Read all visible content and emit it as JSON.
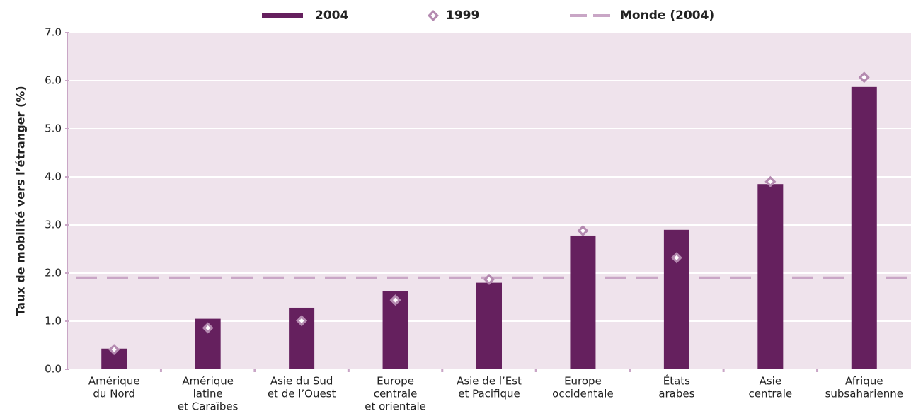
{
  "chart_data": {
    "type": "bar",
    "y_label": "Taux de mobilité vers l’étranger (%)",
    "categories": [
      [
        "Amérique",
        "du Nord"
      ],
      [
        "Amérique",
        "latine",
        "et Caraïbes"
      ],
      [
        "Asie du Sud",
        "et de l’Ouest"
      ],
      [
        "Europe",
        "centrale",
        "et orientale"
      ],
      [
        "Asie de l’Est",
        "et Pacifique"
      ],
      [
        "Europe",
        "occidentale"
      ],
      [
        "États",
        "arabes"
      ],
      [
        "Asie",
        "centrale"
      ],
      [
        "Afrique",
        "subsaharienne"
      ]
    ],
    "series": [
      {
        "name": "2004",
        "type": "bar",
        "color": "#65205e",
        "values": [
          0.43,
          1.05,
          1.28,
          1.63,
          1.8,
          2.78,
          2.9,
          3.85,
          5.87
        ]
      },
      {
        "name": "1999",
        "type": "diamond",
        "color": "#b48ab0",
        "values": [
          0.41,
          0.86,
          1.01,
          1.44,
          1.87,
          2.88,
          2.32,
          3.9,
          6.07
        ]
      }
    ],
    "reference_lines": [
      {
        "name": "Monde (2004)",
        "value": 1.9,
        "color": "#c9a6c6"
      }
    ],
    "ylim": [
      0,
      7
    ],
    "yticks": [
      {
        "value": 0,
        "label": "0.0"
      },
      {
        "value": 1,
        "label": "1.0"
      },
      {
        "value": 2,
        "label": "2.0"
      },
      {
        "value": 3,
        "label": "3.0"
      },
      {
        "value": 4,
        "label": "4.0"
      },
      {
        "value": 5,
        "label": "5.0"
      },
      {
        "value": 6,
        "label": "6.0"
      },
      {
        "value": 7,
        "label": "7.0"
      }
    ],
    "grid": true,
    "legend": "top"
  }
}
